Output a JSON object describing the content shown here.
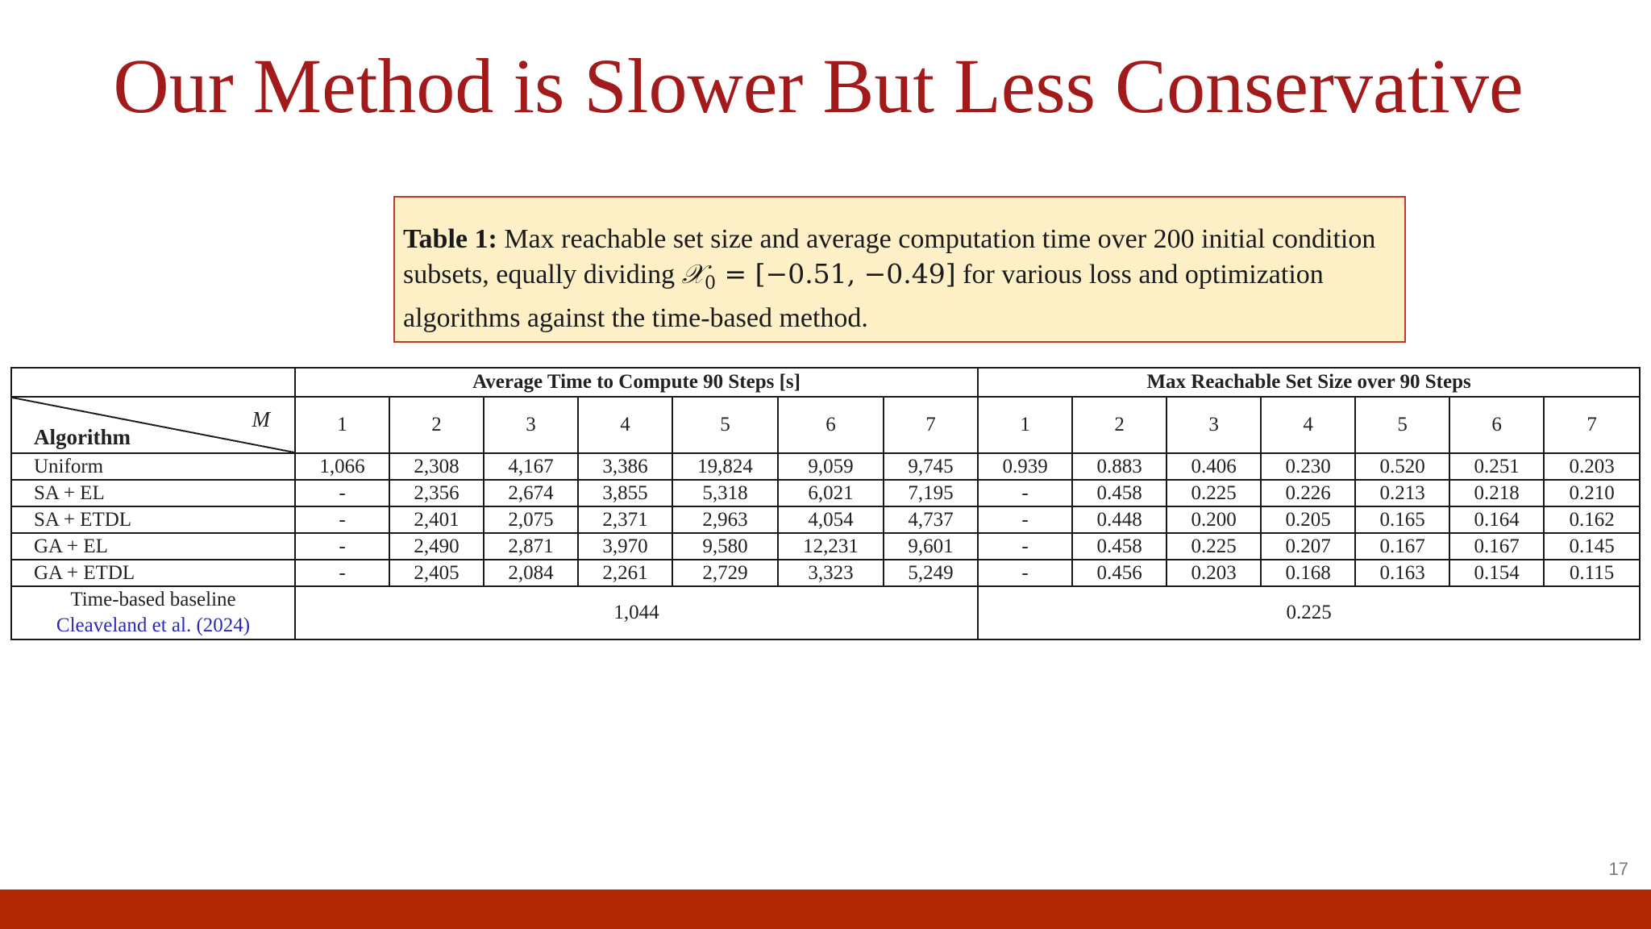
{
  "slide": {
    "title": "Our Method is Slower But Less Conservative",
    "page_number": "17"
  },
  "caption": {
    "label": "Table 1:",
    "text_before": " Max reachable set size and average computation time over 200 initial condition subsets, equally dividing ",
    "math_symbol": "𝒳",
    "math_subscript": "0",
    "math_rest": " = [−0.51, −0.49]",
    "text_after": " for various loss and optimization algorithms against the time-based method."
  },
  "table": {
    "group_time": "Average Time to Compute 90 Steps [s]",
    "group_size": "Max Reachable Set Size over 90 Steps",
    "corner_m": "M",
    "corner_algorithm": "Algorithm",
    "m_values": [
      "1",
      "2",
      "3",
      "4",
      "5",
      "6",
      "7"
    ],
    "rows": [
      {
        "name": "Uniform",
        "time": [
          "1,066",
          "2,308",
          "4,167",
          "3,386",
          "19,824",
          "9,059",
          "9,745"
        ],
        "size": [
          "0.939",
          "0.883",
          "0.406",
          "0.230",
          "0.520",
          "0.251",
          "0.203"
        ]
      },
      {
        "name": "SA + EL",
        "time": [
          "-",
          "2,356",
          "2,674",
          "3,855",
          "5,318",
          "6,021",
          "7,195"
        ],
        "size": [
          "-",
          "0.458",
          "0.225",
          "0.226",
          "0.213",
          "0.218",
          "0.210"
        ]
      },
      {
        "name": "SA + ETDL",
        "time": [
          "-",
          "2,401",
          "2,075",
          "2,371",
          "2,963",
          "4,054",
          "4,737"
        ],
        "size": [
          "-",
          "0.448",
          "0.200",
          "0.205",
          "0.165",
          "0.164",
          "0.162"
        ]
      },
      {
        "name": "GA + EL",
        "time": [
          "-",
          "2,490",
          "2,871",
          "3,970",
          "9,580",
          "12,231",
          "9,601"
        ],
        "size": [
          "-",
          "0.458",
          "0.225",
          "0.207",
          "0.167",
          "0.167",
          "0.145"
        ]
      },
      {
        "name": "GA + ETDL",
        "time": [
          "-",
          "2,405",
          "2,084",
          "2,261",
          "2,729",
          "3,323",
          "5,249"
        ],
        "size": [
          "-",
          "0.456",
          "0.203",
          "0.168",
          "0.163",
          "0.154",
          "0.115"
        ]
      }
    ],
    "baseline": {
      "label": "Time-based baseline",
      "citation": "Cleaveland et al. (2024)",
      "time": "1,044",
      "size": "0.225"
    }
  },
  "colors": {
    "title": "#a31a1a",
    "caption_bg": "#fdefc6",
    "caption_border": "#c0392b",
    "footer_bar": "#b22a04",
    "citation_link": "#2b2bb5"
  }
}
